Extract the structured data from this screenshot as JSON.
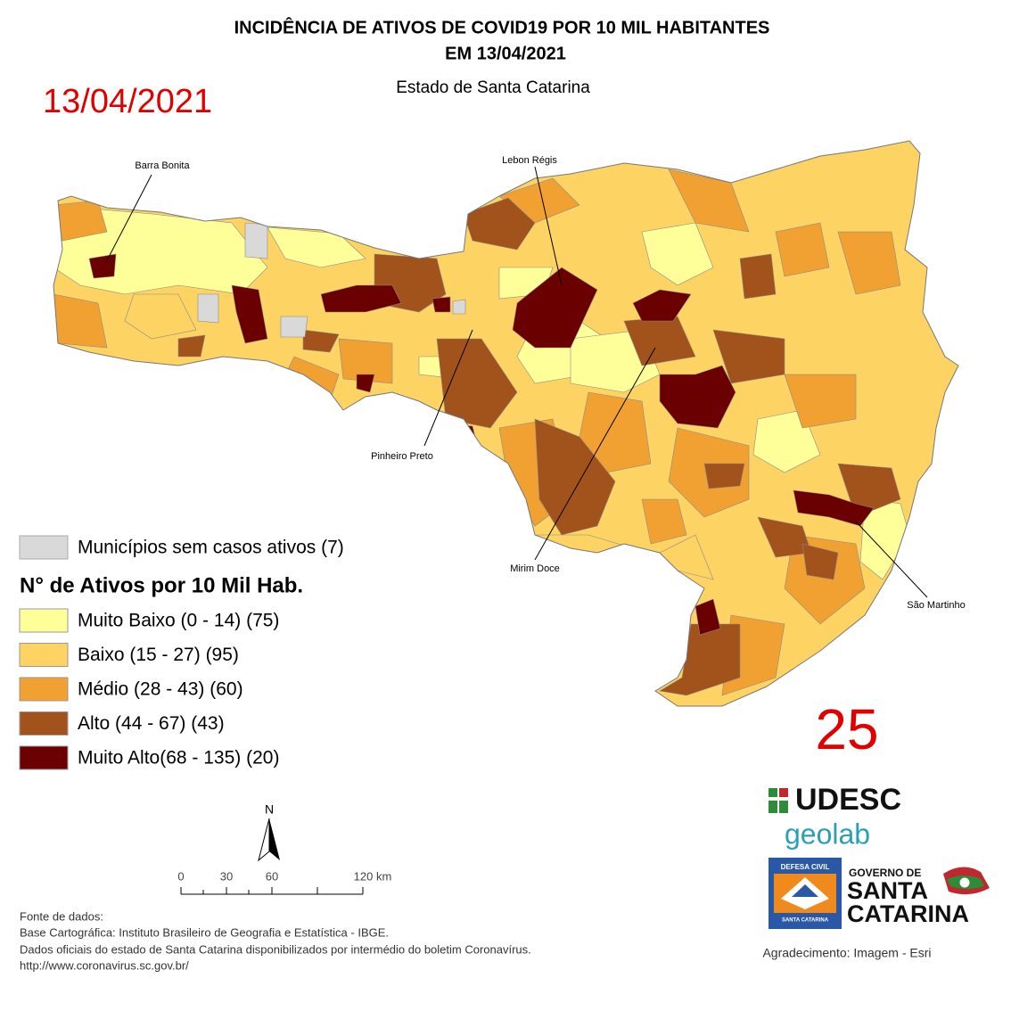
{
  "header": {
    "title_line1": "INCIDÊNCIA DE ATIVOS DE COVID19 POR 10 MIL HABITANTES",
    "title_line2": "EM 13/04/2021",
    "subtitle": "Estado de Santa Catarina",
    "date_stamp": "13/04/2021",
    "page_number": "25"
  },
  "map_labels": [
    "Barra Bonita",
    "Lebon Régis",
    "Pinheiro Preto",
    "Mirim Doce",
    "São Martinho"
  ],
  "legend": {
    "no_cases": {
      "label": "Municípios sem casos ativos (7)",
      "color": "#d9d9d9"
    },
    "heading": "N° de Ativos por 10 Mil Hab.",
    "classes": [
      {
        "label": "Muito Baixo (0 - 14) (75)",
        "color": "#ffff99"
      },
      {
        "label": "Baixo (15 - 27) (95)",
        "color": "#fdd463"
      },
      {
        "label": "Médio (28 - 43) (60)",
        "color": "#f0a132"
      },
      {
        "label": "Alto (44 - 67) (43)",
        "color": "#a2531c"
      },
      {
        "label": "Muito Alto(68 - 135) (20)",
        "color": "#6b0000"
      }
    ]
  },
  "north_arrow": "N",
  "scale_bar": [
    "0",
    "30",
    "60",
    "120 km"
  ],
  "sources": [
    "Fonte de dados:",
    "Base Cartográfica: Instituto Brasileiro de Geografia e Estatística - IBGE.",
    "Dados oficiais do estado de Santa Catarina disponibilizados por intermédio do boletim Coronavírus.",
    "http://www.coronavirus.sc.gov.br/"
  ],
  "logos": {
    "udesc": "UDESC",
    "geolab": "geolab",
    "defesa_civil": "DEFESA CIVIL",
    "defesa_civil_sub": "SANTA CATARINA",
    "governo": "GOVERNO DE",
    "santa": "SANTA",
    "catarina": "CATARINA"
  },
  "credit": "Agradecimento: Imagem - Esri"
}
